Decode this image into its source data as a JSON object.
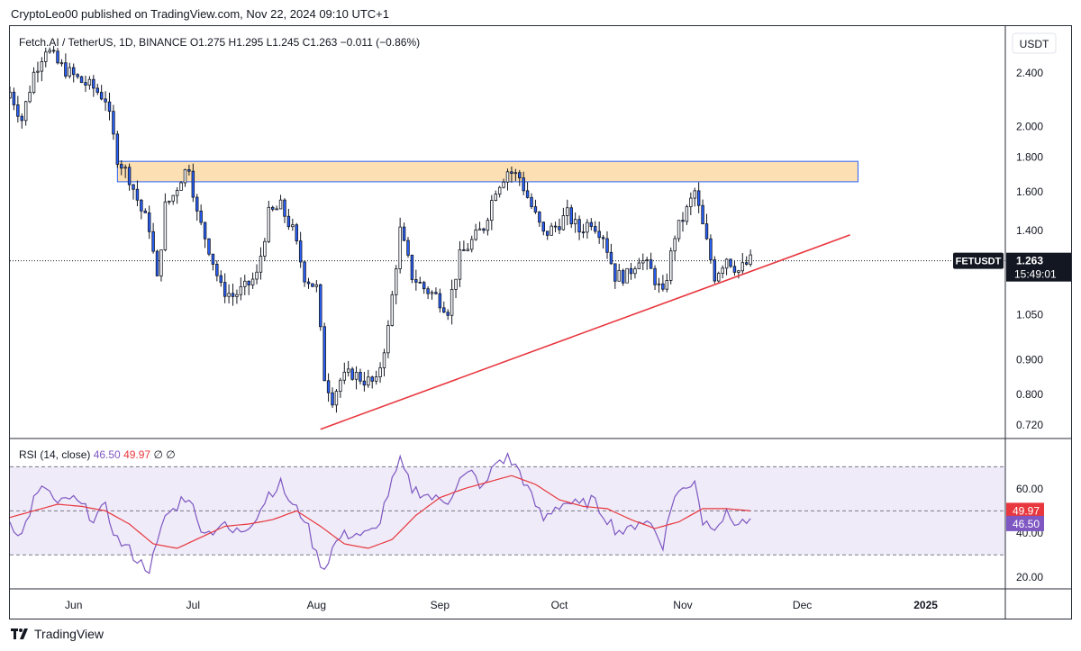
{
  "header": {
    "published_line": "CryptoLeo00 published on TradingView.com, Nov 22, 2024 09:10 UTC+1"
  },
  "footer": {
    "brand": "TradingView"
  },
  "chart_data": [
    {
      "type": "candlestick",
      "title": "Fetch.AI / TetherUS, 1D, BINANCE",
      "ohlc_label": {
        "open": "O1.275",
        "high": "H1.295",
        "low": "L1.245",
        "close": "C1.263",
        "change": "−0.011 (−0.86%)"
      },
      "currency": "USDT",
      "y_scale": "log",
      "ylim": [
        0.69,
        2.75
      ],
      "y_ticks": [
        "2.400",
        "2.000",
        "1.800",
        "1.600",
        "1.400",
        "1.263",
        "1.050",
        "0.900",
        "0.800",
        "0.720"
      ],
      "y_tick_values": [
        2.4,
        2.0,
        1.8,
        1.6,
        1.4,
        1.263,
        1.05,
        0.9,
        0.8,
        0.72
      ],
      "x_ticks": [
        "Jun",
        "Jul",
        "Aug",
        "Sep",
        "Oct",
        "Nov",
        "Dec",
        "2025"
      ],
      "x_tick_days": [
        16,
        46,
        77,
        108,
        138,
        169,
        199,
        230
      ],
      "x_day_range": [
        0,
        250
      ],
      "last_price": {
        "symbol": "FETUSDT",
        "price": "1.263",
        "countdown": "15:49:01",
        "value": 1.263
      },
      "resistance_zone": {
        "day_start": 27,
        "day_end": 213,
        "low": 1.655,
        "high": 1.775
      },
      "support_trendline": {
        "day_start": 78,
        "value_start": 0.71,
        "day_end": 211,
        "value_end": 1.38
      },
      "close_series": [
        [
          0,
          2.25
        ],
        [
          3,
          2.05
        ],
        [
          6,
          2.4
        ],
        [
          9,
          2.62
        ],
        [
          12,
          2.48
        ],
        [
          15,
          2.4
        ],
        [
          18,
          2.33
        ],
        [
          21,
          2.28
        ],
        [
          24,
          2.2
        ],
        [
          27,
          1.8
        ],
        [
          30,
          1.68
        ],
        [
          33,
          1.5
        ],
        [
          35,
          1.42
        ],
        [
          37,
          1.18
        ],
        [
          39,
          1.52
        ],
        [
          41,
          1.58
        ],
        [
          43,
          1.68
        ],
        [
          45,
          1.75
        ],
        [
          47,
          1.48
        ],
        [
          50,
          1.32
        ],
        [
          53,
          1.15
        ],
        [
          56,
          1.12
        ],
        [
          59,
          1.15
        ],
        [
          62,
          1.2
        ],
        [
          65,
          1.48
        ],
        [
          68,
          1.52
        ],
        [
          71,
          1.4
        ],
        [
          74,
          1.2
        ],
        [
          77,
          1.15
        ],
        [
          79,
          0.85
        ],
        [
          81,
          0.79
        ],
        [
          83,
          0.84
        ],
        [
          86,
          0.86
        ],
        [
          89,
          0.84
        ],
        [
          92,
          0.83
        ],
        [
          95,
          1.0
        ],
        [
          98,
          1.4
        ],
        [
          101,
          1.2
        ],
        [
          104,
          1.15
        ],
        [
          107,
          1.12
        ],
        [
          110,
          1.07
        ],
        [
          113,
          1.28
        ],
        [
          116,
          1.35
        ],
        [
          119,
          1.42
        ],
        [
          122,
          1.62
        ],
        [
          125,
          1.72
        ],
        [
          128,
          1.68
        ],
        [
          131,
          1.52
        ],
        [
          134,
          1.38
        ],
        [
          137,
          1.42
        ],
        [
          140,
          1.48
        ],
        [
          143,
          1.4
        ],
        [
          146,
          1.45
        ],
        [
          149,
          1.38
        ],
        [
          152,
          1.2
        ],
        [
          155,
          1.2
        ],
        [
          158,
          1.28
        ],
        [
          161,
          1.22
        ],
        [
          164,
          1.12
        ],
        [
          167,
          1.38
        ],
        [
          170,
          1.5
        ],
        [
          172,
          1.6
        ],
        [
          174,
          1.42
        ],
        [
          177,
          1.2
        ],
        [
          180,
          1.28
        ],
        [
          183,
          1.22
        ],
        [
          186,
          1.263
        ]
      ],
      "rsi": {
        "label": "RSI (14, close)",
        "value": "46.50",
        "ma_value": "49.97",
        "extra": "∅ ∅",
        "ylim": [
          15,
          82
        ],
        "y_ticks": [
          "60.00",
          "40.00",
          "20.00"
        ],
        "y_tick_values": [
          60,
          40,
          20
        ],
        "bands": {
          "upper": 70,
          "middle": 50,
          "lower": 30
        },
        "series": [
          [
            0,
            45
          ],
          [
            3,
            39
          ],
          [
            6,
            55
          ],
          [
            9,
            61
          ],
          [
            12,
            52
          ],
          [
            15,
            56
          ],
          [
            18,
            52
          ],
          [
            21,
            47
          ],
          [
            24,
            51
          ],
          [
            27,
            37
          ],
          [
            30,
            32
          ],
          [
            33,
            26
          ],
          [
            35,
            24
          ],
          [
            37,
            34
          ],
          [
            39,
            48
          ],
          [
            41,
            50
          ],
          [
            43,
            55
          ],
          [
            45,
            57
          ],
          [
            47,
            45
          ],
          [
            50,
            40
          ],
          [
            53,
            44
          ],
          [
            56,
            40
          ],
          [
            59,
            42
          ],
          [
            62,
            48
          ],
          [
            65,
            58
          ],
          [
            68,
            62
          ],
          [
            71,
            52
          ],
          [
            74,
            47
          ],
          [
            77,
            30
          ],
          [
            79,
            24
          ],
          [
            81,
            33
          ],
          [
            83,
            38
          ],
          [
            86,
            40
          ],
          [
            89,
            39
          ],
          [
            92,
            41
          ],
          [
            95,
            58
          ],
          [
            98,
            72
          ],
          [
            101,
            60
          ],
          [
            104,
            58
          ],
          [
            107,
            55
          ],
          [
            110,
            55
          ],
          [
            113,
            64
          ],
          [
            116,
            67
          ],
          [
            119,
            60
          ],
          [
            122,
            72
          ],
          [
            125,
            74
          ],
          [
            128,
            68
          ],
          [
            131,
            56
          ],
          [
            134,
            46
          ],
          [
            137,
            52
          ],
          [
            140,
            54
          ],
          [
            143,
            52
          ],
          [
            146,
            55
          ],
          [
            149,
            49
          ],
          [
            152,
            42
          ],
          [
            155,
            40
          ],
          [
            158,
            46
          ],
          [
            161,
            44
          ],
          [
            164,
            35
          ],
          [
            167,
            58
          ],
          [
            170,
            60
          ],
          [
            172,
            65
          ],
          [
            174,
            45
          ],
          [
            177,
            44
          ],
          [
            180,
            48
          ],
          [
            183,
            44
          ],
          [
            186,
            46.5
          ]
        ],
        "ma_series": [
          [
            0,
            47
          ],
          [
            6,
            50
          ],
          [
            12,
            53
          ],
          [
            18,
            52
          ],
          [
            24,
            50
          ],
          [
            30,
            44
          ],
          [
            36,
            35
          ],
          [
            42,
            33
          ],
          [
            48,
            38
          ],
          [
            54,
            43
          ],
          [
            60,
            44
          ],
          [
            66,
            46
          ],
          [
            72,
            50
          ],
          [
            78,
            43
          ],
          [
            84,
            35
          ],
          [
            90,
            33
          ],
          [
            96,
            37
          ],
          [
            102,
            48
          ],
          [
            108,
            56
          ],
          [
            114,
            60
          ],
          [
            120,
            63
          ],
          [
            126,
            66
          ],
          [
            132,
            62
          ],
          [
            138,
            55
          ],
          [
            144,
            52
          ],
          [
            150,
            51
          ],
          [
            156,
            46
          ],
          [
            162,
            42
          ],
          [
            168,
            45
          ],
          [
            174,
            51
          ],
          [
            180,
            51
          ],
          [
            186,
            50
          ]
        ]
      }
    }
  ]
}
